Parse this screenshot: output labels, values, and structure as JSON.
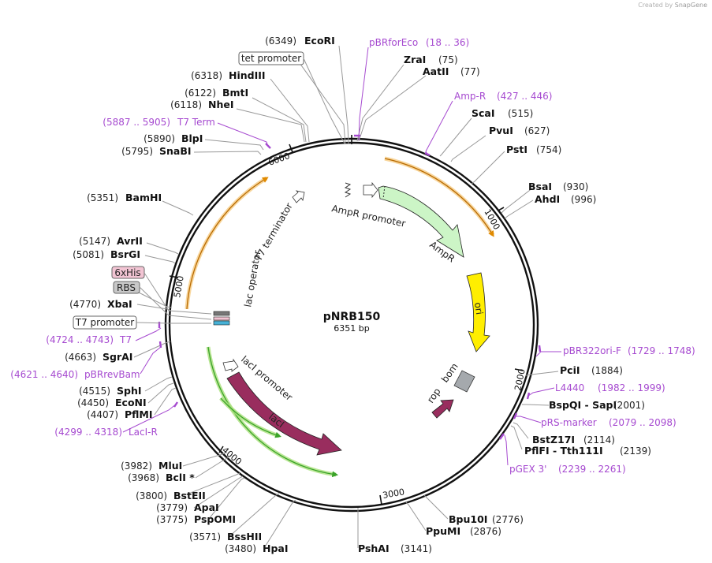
{
  "watermark": {
    "prefix": "Created by",
    "brand": "SnapGene"
  },
  "plasmid": {
    "name": "pNRB150",
    "length_label": "6351 bp"
  },
  "ticks": [
    "1000",
    "2000",
    "3000",
    "4000",
    "5000",
    "6000"
  ],
  "enzymes": [
    {
      "id": "EcoRI",
      "pos": "(6349)",
      "name": "EcoRI"
    },
    {
      "id": "ZraI",
      "pos": "(75)",
      "name": "ZraI"
    },
    {
      "id": "AatII",
      "pos": "(77)",
      "name": "AatII"
    },
    {
      "id": "HindIII",
      "pos": "(6318)",
      "name": "HindIII"
    },
    {
      "id": "BmtI",
      "pos": "(6122)",
      "name": "BmtI"
    },
    {
      "id": "NheI",
      "pos": "(6118)",
      "name": "NheI"
    },
    {
      "id": "ScaI",
      "pos": "(515)",
      "name": "ScaI"
    },
    {
      "id": "PvuI",
      "pos": "(627)",
      "name": "PvuI"
    },
    {
      "id": "PstI",
      "pos": "(754)",
      "name": "PstI"
    },
    {
      "id": "BlpI",
      "pos": "(5890)",
      "name": "BlpI"
    },
    {
      "id": "SnaBI",
      "pos": "(5795)",
      "name": "SnaBI"
    },
    {
      "id": "BsaI",
      "pos": "(930)",
      "name": "BsaI"
    },
    {
      "id": "AhdI",
      "pos": "(996)",
      "name": "AhdI"
    },
    {
      "id": "BamHI",
      "pos": "(5351)",
      "name": "BamHI"
    },
    {
      "id": "AvrII",
      "pos": "(5147)",
      "name": "AvrII"
    },
    {
      "id": "BsrGI",
      "pos": "(5081)",
      "name": "BsrGI"
    },
    {
      "id": "XbaI",
      "pos": "(4770)",
      "name": "XbaI"
    },
    {
      "id": "SgrAI",
      "pos": "(4663)",
      "name": "SgrAI"
    },
    {
      "id": "PciI",
      "pos": "(1884)",
      "name": "PciI"
    },
    {
      "id": "BspQI",
      "pos": "(2001)",
      "name": "BspQI  -  SapI"
    },
    {
      "id": "SphI",
      "pos": "(4515)",
      "name": "SphI"
    },
    {
      "id": "EcoNI",
      "pos": "(4450)",
      "name": "EcoNI"
    },
    {
      "id": "PflMI",
      "pos": "(4407)",
      "name": "PflMI"
    },
    {
      "id": "BstZ17I",
      "pos": "(2114)",
      "name": "BstZ17I"
    },
    {
      "id": "PflFI",
      "pos": "(2139)",
      "name": "PflFI  -  Tth111I"
    },
    {
      "id": "MluI",
      "pos": "(3982)",
      "name": "MluI"
    },
    {
      "id": "BclI",
      "pos": "(3968)",
      "name": "BclI *"
    },
    {
      "id": "BstEII",
      "pos": "(3800)",
      "name": "BstEII"
    },
    {
      "id": "ApaI",
      "pos": "(3779)",
      "name": "ApaI"
    },
    {
      "id": "PspOMI",
      "pos": "(3775)",
      "name": "PspOMI"
    },
    {
      "id": "BssHII",
      "pos": "(3571)",
      "name": "BssHII"
    },
    {
      "id": "HpaI",
      "pos": "(3480)",
      "name": "HpaI"
    },
    {
      "id": "PshAI",
      "pos": "(3141)",
      "name": "PshAI"
    },
    {
      "id": "Bpu10I",
      "pos": "(2776)",
      "name": "Bpu10I"
    },
    {
      "id": "PpuMI",
      "pos": "(2876)",
      "name": "PpuMI"
    }
  ],
  "primers": [
    {
      "id": "pBRforEco",
      "name": "pBRforEco",
      "range": "(18 .. 36)"
    },
    {
      "id": "AmpR",
      "name": "Amp-R",
      "range": "(427 .. 446)"
    },
    {
      "id": "T7Term",
      "name": "T7 Term",
      "range": "(5887 .. 5905)"
    },
    {
      "id": "pBR322ori",
      "name": "pBR322ori-F",
      "range": "(1729 .. 1748)"
    },
    {
      "id": "T7",
      "name": "T7",
      "range": "(4724 .. 4743)"
    },
    {
      "id": "L4440",
      "name": "L4440",
      "range": "(1982 .. 1999)"
    },
    {
      "id": "pBRrevBam",
      "name": "pBRrevBam",
      "range": "(4621 .. 4640)"
    },
    {
      "id": "pRSmarker",
      "name": "pRS-marker",
      "range": "(2079 .. 2098)"
    },
    {
      "id": "LacIR",
      "name": "LacI-R",
      "range": "(4299 .. 4318)"
    },
    {
      "id": "pGEX3",
      "name": "pGEX 3'",
      "range": "(2239 .. 2261)"
    }
  ],
  "boxed_labels": {
    "tet_promoter": "tet promoter",
    "sixhis": "6xHis",
    "rbs": "RBS",
    "t7_promoter": "T7 promoter"
  },
  "features": {
    "ampr_promoter": "AmpR promoter",
    "ampr": "AmpR",
    "ori": "ori",
    "bom": "bom",
    "rop": "rop",
    "laci": "lacI",
    "laci_promoter": "lacI promoter",
    "lac_operator": "lac operator",
    "t7_terminator": "T7 terminator"
  },
  "colors": {
    "backbone": "#111111",
    "enzyme_line": "#888888",
    "primer": "#a64ad0",
    "ampr_fill": "#ccf5c6",
    "ori_fill": "#ffee00",
    "laci_fill": "#992d5e",
    "rop_fill": "#992d5e",
    "bom_fill": "#a5a9ad",
    "orange_highlight": "#f2b44a",
    "green_highlight": "#a9e07a",
    "sixhis_fill": "#f2c4d3",
    "rbs_fill": "#c8c8c8"
  }
}
